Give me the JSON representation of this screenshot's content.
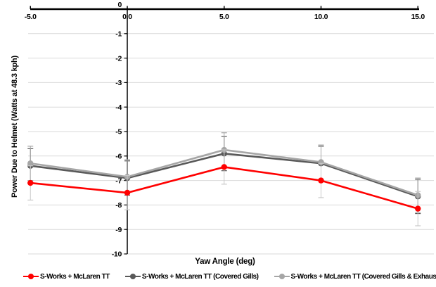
{
  "chart_data": {
    "type": "line",
    "title": "",
    "xlabel": "Yaw Angle (deg)",
    "ylabel": "Power Due to Helmet (Watts at 48.3 kph)",
    "x": [
      -5.0,
      0.0,
      5.0,
      10.0,
      15.0
    ],
    "x_tick_labels": [
      "-5.0",
      "0.0",
      "5.0",
      "10.0",
      "15.0"
    ],
    "y_ticks": [
      0,
      -1,
      -2,
      -3,
      -4,
      -5,
      -6,
      -7,
      -8,
      -9,
      -10
    ],
    "xlim": [
      -5,
      15
    ],
    "ylim": [
      0,
      -10
    ],
    "grid": true,
    "gridline_color": "#d9d9d9",
    "axis_color": "#000000",
    "legend_position": "bottom",
    "series": [
      {
        "name": "S-Works + McLaren TT",
        "color": "#ff0000",
        "error_color": "#c9c9c9",
        "values": [
          -7.1,
          -7.5,
          -6.45,
          -7.0,
          -8.15
        ],
        "error": 0.7
      },
      {
        "name": "S-Works + McLaren TT (Covered Gills)",
        "color": "#595959",
        "error_color": "#595959",
        "values": [
          -6.4,
          -6.9,
          -5.9,
          -6.3,
          -7.65
        ],
        "error": 0.7
      },
      {
        "name": "S-Works + McLaren TT (Covered Gills & Exhaust)",
        "color": "#a6a6a6",
        "error_color": "#a6a6a6",
        "values": [
          -6.3,
          -6.85,
          -5.75,
          -6.25,
          -7.6
        ],
        "error": 0.7
      }
    ]
  }
}
